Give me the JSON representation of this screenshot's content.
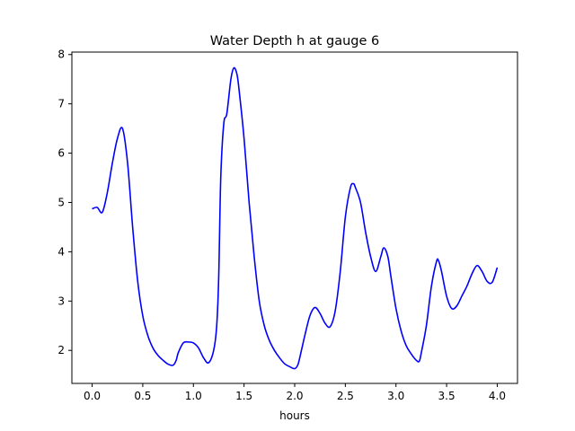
{
  "chart_data": {
    "type": "line",
    "title": "Water Depth h at gauge 6",
    "xlabel": "hours",
    "ylabel": "",
    "xlim": [
      -0.2,
      4.2
    ],
    "ylim": [
      1.33,
      8.05
    ],
    "xticks": [
      0.0,
      0.5,
      1.0,
      1.5,
      2.0,
      2.5,
      3.0,
      3.5,
      4.0
    ],
    "xtick_labels": [
      "0.0",
      "0.5",
      "1.0",
      "1.5",
      "2.0",
      "2.5",
      "3.0",
      "3.5",
      "4.0"
    ],
    "yticks": [
      2,
      3,
      4,
      5,
      6,
      7,
      8
    ],
    "ytick_labels": [
      "2",
      "3",
      "4",
      "5",
      "6",
      "7",
      "8"
    ],
    "grid": false,
    "legend": "none",
    "series": [
      {
        "color": "#0000ff",
        "x": [
          0.0,
          0.05,
          0.1,
          0.15,
          0.2,
          0.25,
          0.3,
          0.35,
          0.4,
          0.45,
          0.5,
          0.55,
          0.6,
          0.65,
          0.7,
          0.75,
          0.8,
          0.83,
          0.85,
          0.9,
          0.95,
          1.0,
          1.05,
          1.1,
          1.15,
          1.2,
          1.23,
          1.25,
          1.27,
          1.3,
          1.33,
          1.37,
          1.4,
          1.43,
          1.45,
          1.5,
          1.55,
          1.6,
          1.65,
          1.7,
          1.75,
          1.8,
          1.85,
          1.9,
          1.95,
          2.0,
          2.03,
          2.05,
          2.1,
          2.15,
          2.2,
          2.25,
          2.3,
          2.35,
          2.4,
          2.45,
          2.5,
          2.55,
          2.58,
          2.6,
          2.65,
          2.7,
          2.75,
          2.8,
          2.85,
          2.88,
          2.92,
          2.95,
          3.0,
          3.05,
          3.1,
          3.15,
          3.2,
          3.23,
          3.25,
          3.3,
          3.35,
          3.4,
          3.42,
          3.45,
          3.5,
          3.55,
          3.6,
          3.65,
          3.7,
          3.75,
          3.8,
          3.85,
          3.9,
          3.95,
          4.0
        ],
        "y": [
          4.87,
          4.9,
          4.8,
          5.2,
          5.8,
          6.3,
          6.5,
          5.8,
          4.5,
          3.4,
          2.7,
          2.3,
          2.05,
          1.9,
          1.8,
          1.72,
          1.7,
          1.8,
          1.95,
          2.15,
          2.17,
          2.15,
          2.05,
          1.85,
          1.75,
          2.0,
          2.5,
          3.5,
          5.5,
          6.6,
          6.8,
          7.5,
          7.73,
          7.6,
          7.3,
          6.3,
          5.0,
          3.9,
          3.0,
          2.5,
          2.2,
          2.0,
          1.85,
          1.73,
          1.67,
          1.63,
          1.7,
          1.85,
          2.3,
          2.7,
          2.87,
          2.75,
          2.55,
          2.48,
          2.8,
          3.6,
          4.7,
          5.3,
          5.38,
          5.3,
          5.0,
          4.4,
          3.9,
          3.6,
          3.9,
          4.08,
          3.9,
          3.5,
          2.85,
          2.4,
          2.1,
          1.93,
          1.8,
          1.78,
          1.95,
          2.5,
          3.3,
          3.8,
          3.82,
          3.6,
          3.1,
          2.85,
          2.9,
          3.1,
          3.3,
          3.55,
          3.72,
          3.6,
          3.4,
          3.38,
          3.68
        ]
      }
    ]
  }
}
